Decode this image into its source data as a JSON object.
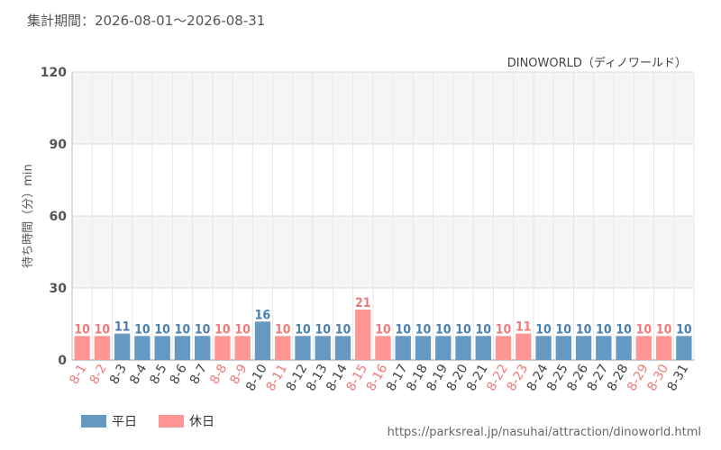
{
  "header": {
    "period_text": "集計期間：2026-08-01～2026-08-31"
  },
  "footer": {
    "source_url": "https://parksreal.jp/nasuhai/attraction/dinoworld.html"
  },
  "chart_data": {
    "type": "bar",
    "title": "DINOWORLD（ディノワールド）",
    "xlabel": "",
    "ylabel": "待ち時間（分）min",
    "ylim": [
      0,
      120
    ],
    "yticks": [
      0,
      30,
      60,
      90,
      120
    ],
    "grid": true,
    "legend_position": "bottom-left",
    "categories": [
      "8-1",
      "8-2",
      "8-3",
      "8-4",
      "8-5",
      "8-6",
      "8-7",
      "8-8",
      "8-9",
      "8-10",
      "8-11",
      "8-12",
      "8-13",
      "8-14",
      "8-15",
      "8-16",
      "8-17",
      "8-18",
      "8-19",
      "8-20",
      "8-21",
      "8-22",
      "8-23",
      "8-24",
      "8-25",
      "8-26",
      "8-27",
      "8-28",
      "8-29",
      "8-30",
      "8-31"
    ],
    "values": [
      10,
      10,
      11,
      10,
      10,
      10,
      10,
      10,
      10,
      16,
      10,
      10,
      10,
      10,
      21,
      10,
      10,
      10,
      10,
      10,
      10,
      10,
      11,
      10,
      10,
      10,
      10,
      10,
      10,
      10,
      10
    ],
    "day_types": [
      "holiday",
      "holiday",
      "weekday",
      "weekday",
      "weekday",
      "weekday",
      "weekday",
      "holiday",
      "holiday",
      "weekday",
      "holiday",
      "weekday",
      "weekday",
      "weekday",
      "holiday",
      "holiday",
      "weekday",
      "weekday",
      "weekday",
      "weekday",
      "weekday",
      "holiday",
      "holiday",
      "weekday",
      "weekday",
      "weekday",
      "weekday",
      "weekday",
      "holiday",
      "holiday",
      "weekday"
    ],
    "legend": [
      {
        "key": "weekday",
        "label": "平日",
        "color": "#6699c2"
      },
      {
        "key": "holiday",
        "label": "休日",
        "color": "#ff9694"
      }
    ],
    "label_colors": {
      "weekday": "#4a7fae",
      "holiday": "#f07a78"
    }
  }
}
